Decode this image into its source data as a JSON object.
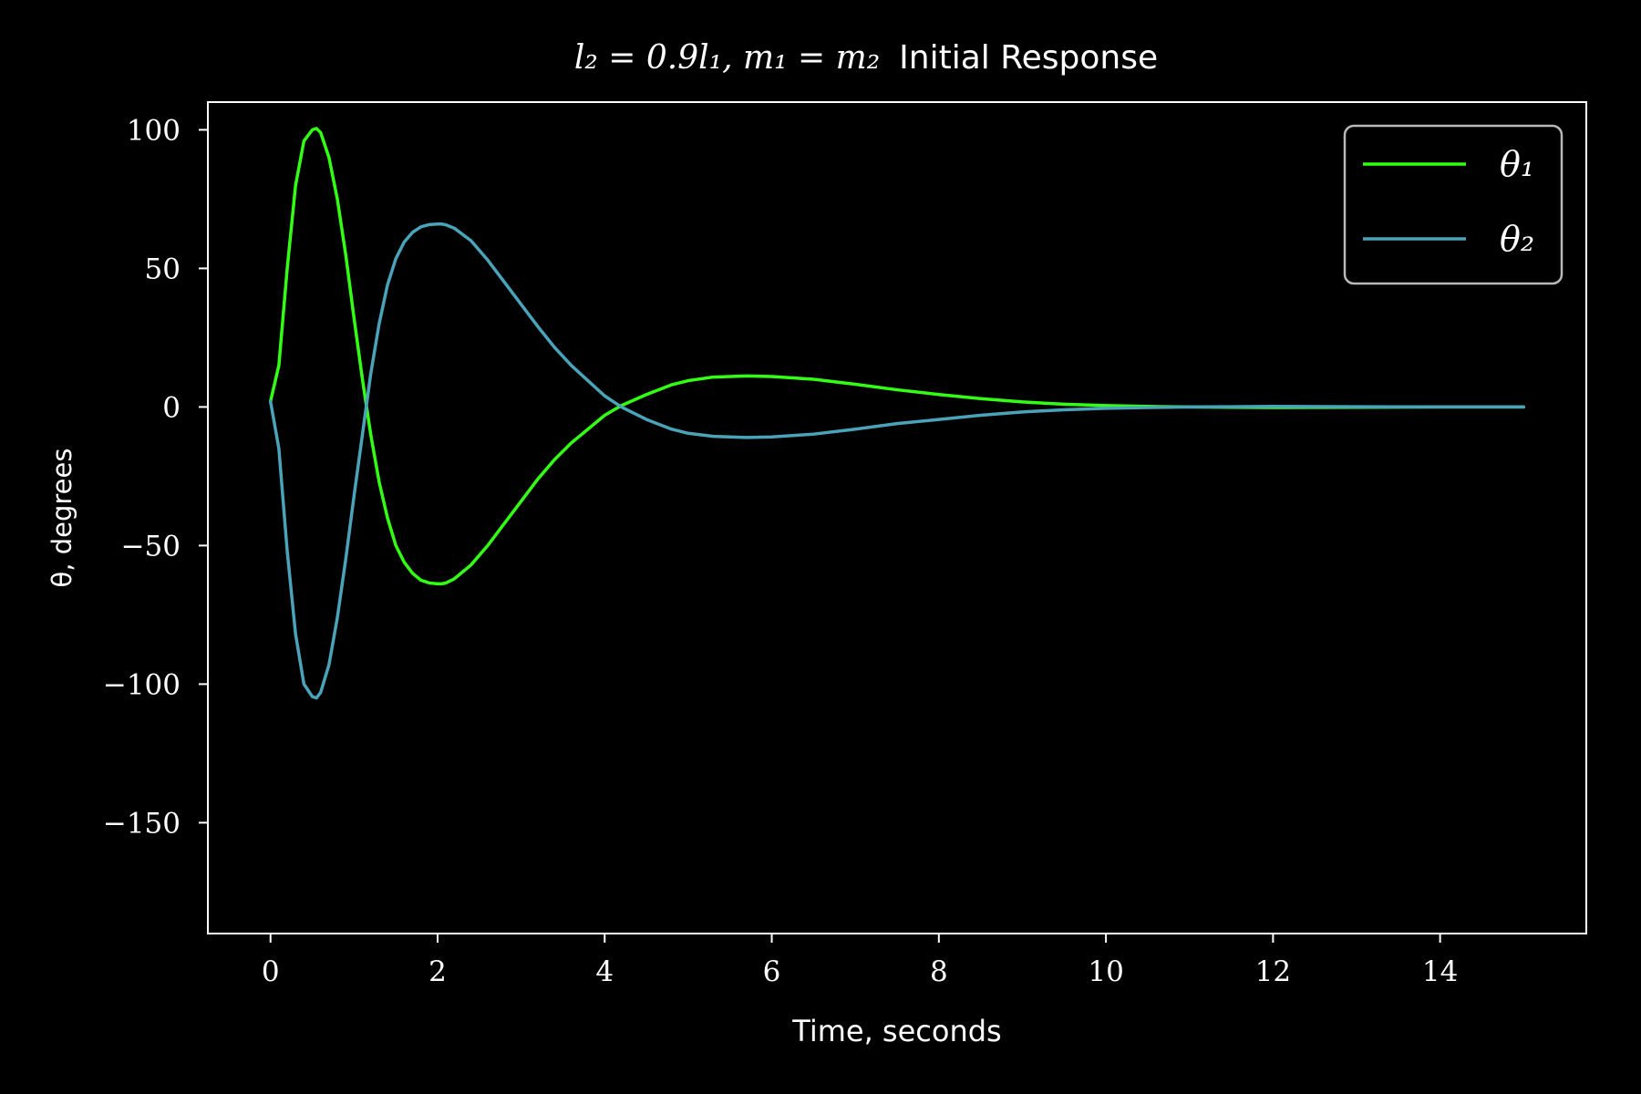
{
  "chart_data": {
    "type": "line",
    "title": {
      "math_prefix": "l₂ = 0.9l₁, m₁ = m₂",
      "text": "Initial Response"
    },
    "xlabel": "Time, seconds",
    "ylabel": "θ, degrees",
    "xlim": [
      -0.75,
      15.75
    ],
    "ylim": [
      -190,
      110
    ],
    "x_ticks": [
      0,
      2,
      4,
      6,
      8,
      10,
      12,
      14
    ],
    "y_ticks": [
      100,
      50,
      0,
      -50,
      -100,
      -150
    ],
    "x_tick_labels": [
      "0",
      "2",
      "4",
      "6",
      "8",
      "10",
      "12",
      "14"
    ],
    "y_tick_labels": [
      "100",
      "50",
      "0",
      "−50",
      "−100",
      "−150"
    ],
    "grid": false,
    "legend_position": "top-right",
    "background": "#000000",
    "foreground": "#ffffff",
    "series": [
      {
        "name": "θ₁",
        "color": "#33ff14",
        "x": [
          0,
          0.1,
          0.2,
          0.3,
          0.4,
          0.5,
          0.55,
          0.6,
          0.7,
          0.8,
          0.9,
          1.0,
          1.1,
          1.2,
          1.3,
          1.4,
          1.5,
          1.6,
          1.7,
          1.8,
          1.9,
          2.0,
          2.05,
          2.1,
          2.2,
          2.4,
          2.6,
          2.8,
          3.0,
          3.2,
          3.4,
          3.6,
          3.8,
          4.0,
          4.2,
          4.5,
          4.8,
          5.0,
          5.3,
          5.7,
          6.0,
          6.5,
          7.0,
          7.5,
          8.0,
          8.5,
          9.0,
          9.5,
          10.0,
          10.5,
          11.0,
          11.5,
          12.0,
          13.0,
          14.0,
          15.0
        ],
        "y": [
          2,
          15,
          50,
          80,
          96,
          100,
          100.5,
          99,
          90,
          75,
          55,
          32,
          10,
          -10,
          -27,
          -40,
          -50,
          -56,
          -60,
          -62.5,
          -63.5,
          -63.8,
          -63.8,
          -63.5,
          -62,
          -57,
          -50,
          -42,
          -34,
          -26,
          -19,
          -13,
          -8,
          -3,
          0.5,
          4.5,
          8,
          9.5,
          10.8,
          11.2,
          11,
          10,
          8.2,
          6.2,
          4.5,
          3,
          1.8,
          1,
          0.5,
          0.2,
          0,
          -0.1,
          -0.2,
          -0.1,
          0,
          0
        ]
      },
      {
        "name": "θ₂",
        "color": "#4aa3b8",
        "x": [
          0,
          0.1,
          0.2,
          0.3,
          0.4,
          0.5,
          0.55,
          0.6,
          0.7,
          0.8,
          0.9,
          1.0,
          1.1,
          1.2,
          1.3,
          1.4,
          1.5,
          1.6,
          1.7,
          1.8,
          1.9,
          2.0,
          2.05,
          2.1,
          2.2,
          2.4,
          2.6,
          2.8,
          3.0,
          3.2,
          3.4,
          3.6,
          3.8,
          4.0,
          4.2,
          4.5,
          4.8,
          5.0,
          5.3,
          5.7,
          6.0,
          6.5,
          7.0,
          7.5,
          8.0,
          8.5,
          9.0,
          9.5,
          10.0,
          10.5,
          11.0,
          11.5,
          12.0,
          13.0,
          14.0,
          15.0
        ],
        "y": [
          2,
          -15,
          -52,
          -82,
          -100,
          -104.5,
          -105,
          -103,
          -93,
          -76,
          -55,
          -32,
          -10,
          12,
          30,
          44,
          53.5,
          59.5,
          63,
          65,
          65.8,
          66,
          66,
          65.7,
          64.5,
          60,
          53,
          45,
          37,
          29,
          21.5,
          15,
          9.5,
          4,
          0,
          -4.5,
          -8,
          -9.5,
          -10.6,
          -11,
          -10.8,
          -9.8,
          -8,
          -6,
          -4.5,
          -3,
          -1.8,
          -1,
          -0.5,
          -0.2,
          0,
          0.1,
          0.2,
          0.1,
          0,
          0
        ]
      }
    ]
  }
}
